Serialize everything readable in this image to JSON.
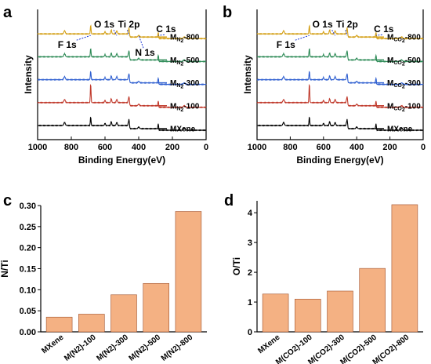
{
  "colors": {
    "bar_fill": "#f4b183",
    "bar_stroke": "#a0522d",
    "arrow": "#1f3bd6",
    "series": [
      "#000000",
      "#c0392b",
      "#2f5fd0",
      "#2e8b57",
      "#d4a017"
    ]
  },
  "chart_data": [
    {
      "panel": "a",
      "type": "line",
      "xlabel": "Binding Energy(eV)",
      "ylabel": "Intensity",
      "xlim": [
        1000,
        0
      ],
      "x_ticks": [
        1000,
        800,
        600,
        400,
        200,
        0
      ],
      "peaks": [
        {
          "label": "F 1s",
          "x": 685
        },
        {
          "label": "O 1s",
          "x": 530
        },
        {
          "label": "Ti 2p",
          "x": 458
        },
        {
          "label": "N 1s",
          "x": 400
        },
        {
          "label": "C 1s",
          "x": 284
        }
      ],
      "series": [
        {
          "name_main": "M",
          "name_sub": "N",
          "name_sub2": "2",
          "name_rest": "-800"
        },
        {
          "name_main": "M",
          "name_sub": "N",
          "name_sub2": "2",
          "name_rest": "-500"
        },
        {
          "name_main": "M",
          "name_sub": "N",
          "name_sub2": "2",
          "name_rest": "-300"
        },
        {
          "name_main": "M",
          "name_sub": "N",
          "name_sub2": "2",
          "name_rest": "-100"
        },
        {
          "name_main": "MXene",
          "name_sub": "",
          "name_sub2": "",
          "name_rest": ""
        }
      ]
    },
    {
      "panel": "b",
      "type": "line",
      "xlabel": "Binding Energy(eV)",
      "ylabel": "Intensity",
      "xlim": [
        1000,
        0
      ],
      "x_ticks": [
        1000,
        800,
        600,
        400,
        200,
        0
      ],
      "peaks": [
        {
          "label": "F 1s",
          "x": 685
        },
        {
          "label": "O 1s",
          "x": 530
        },
        {
          "label": "Ti 2p",
          "x": 458
        },
        {
          "label": "C 1s",
          "x": 284
        }
      ],
      "series": [
        {
          "name_main": "M",
          "name_sub": "CO",
          "name_sub2": "2",
          "name_rest": "-800"
        },
        {
          "name_main": "M",
          "name_sub": "CO",
          "name_sub2": "2",
          "name_rest": "-500"
        },
        {
          "name_main": "M",
          "name_sub": "CO",
          "name_sub2": "2",
          "name_rest": "-300"
        },
        {
          "name_main": "M",
          "name_sub": "CO",
          "name_sub2": "2",
          "name_rest": "-100"
        },
        {
          "name_main": "MXene",
          "name_sub": "",
          "name_sub2": "",
          "name_rest": ""
        }
      ]
    },
    {
      "panel": "c",
      "type": "bar",
      "ylabel": "N/Ti",
      "xlabel": "",
      "categories": [
        "MXene",
        "M(N2)-100",
        "M(N2)-300",
        "M(N2)-500",
        "M(N2)-800"
      ],
      "values": [
        0.035,
        0.042,
        0.088,
        0.115,
        0.286
      ],
      "ylim": [
        0,
        0.3
      ],
      "y_ticks": [
        "0.00",
        "0.05",
        "0.10",
        "0.15",
        "0.20",
        "0.25",
        "0.30"
      ]
    },
    {
      "panel": "d",
      "type": "bar",
      "ylabel": "O/Ti",
      "xlabel": "",
      "categories": [
        "MXene",
        "M(CO2)-100",
        "M(CO2)-300",
        "M(CO2)-500",
        "M(CO2)-800"
      ],
      "values": [
        1.27,
        1.1,
        1.37,
        2.13,
        4.27
      ],
      "ylim": [
        0,
        4.4
      ],
      "y_ticks": [
        "0",
        "1",
        "2",
        "3",
        "4"
      ]
    }
  ]
}
